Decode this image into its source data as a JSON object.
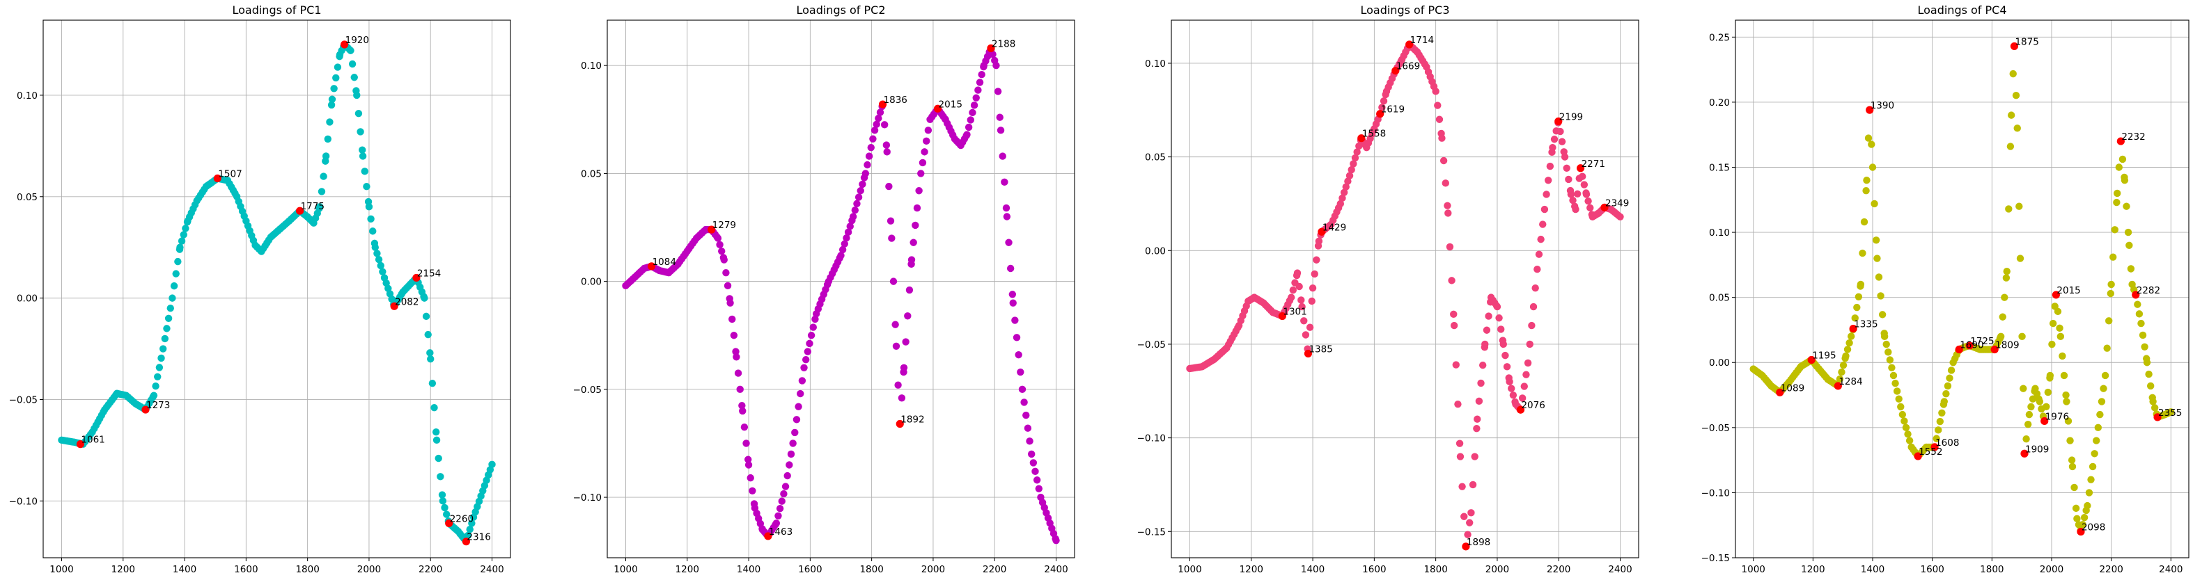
{
  "chart_data": [
    {
      "type": "scatter",
      "title": "Loadings of PC1",
      "xlabel": "",
      "ylabel": "",
      "xlim": [
        940,
        2460
      ],
      "ylim": [
        -0.128,
        0.137
      ],
      "xticks": [
        1000,
        1200,
        1400,
        1600,
        1800,
        2000,
        2200,
        2400
      ],
      "yticks": [
        -0.1,
        -0.05,
        0.0,
        0.05,
        0.1
      ],
      "ytick_labels": [
        "−0.10",
        "−0.05",
        "0.00",
        "0.05",
        "0.10"
      ],
      "grid": true,
      "series_color": "#00bfbf",
      "peak_color": "#ff0000",
      "curve": [
        [
          1000,
          -0.07
        ],
        [
          1040,
          -0.071
        ],
        [
          1070,
          -0.072
        ],
        [
          1100,
          -0.066
        ],
        [
          1140,
          -0.055
        ],
        [
          1180,
          -0.047
        ],
        [
          1210,
          -0.048
        ],
        [
          1240,
          -0.052
        ],
        [
          1273,
          -0.055
        ],
        [
          1300,
          -0.048
        ],
        [
          1330,
          -0.025
        ],
        [
          1360,
          0.0
        ],
        [
          1385,
          0.025
        ],
        [
          1410,
          0.038
        ],
        [
          1440,
          0.048
        ],
        [
          1470,
          0.055
        ],
        [
          1507,
          0.059
        ],
        [
          1540,
          0.058
        ],
        [
          1570,
          0.05
        ],
        [
          1600,
          0.038
        ],
        [
          1630,
          0.026
        ],
        [
          1650,
          0.023
        ],
        [
          1680,
          0.03
        ],
        [
          1710,
          0.034
        ],
        [
          1740,
          0.038
        ],
        [
          1775,
          0.043
        ],
        [
          1800,
          0.04
        ],
        [
          1820,
          0.037
        ],
        [
          1840,
          0.045
        ],
        [
          1860,
          0.07
        ],
        [
          1880,
          0.098
        ],
        [
          1905,
          0.12
        ],
        [
          1920,
          0.125
        ],
        [
          1940,
          0.122
        ],
        [
          1960,
          0.1
        ],
        [
          1980,
          0.07
        ],
        [
          2000,
          0.045
        ],
        [
          2020,
          0.025
        ],
        [
          2050,
          0.01
        ],
        [
          2082,
          -0.004
        ],
        [
          2110,
          0.003
        ],
        [
          2154,
          0.01
        ],
        [
          2180,
          0.0
        ],
        [
          2200,
          -0.03
        ],
        [
          2220,
          -0.07
        ],
        [
          2240,
          -0.1
        ],
        [
          2260,
          -0.111
        ],
        [
          2290,
          -0.115
        ],
        [
          2316,
          -0.12
        ],
        [
          2340,
          -0.108
        ],
        [
          2370,
          -0.095
        ],
        [
          2400,
          -0.082
        ]
      ],
      "peaks": [
        {
          "x": 1061,
          "y": -0.072,
          "label": "1061"
        },
        {
          "x": 1273,
          "y": -0.055,
          "label": "1273"
        },
        {
          "x": 1507,
          "y": 0.059,
          "label": "1507"
        },
        {
          "x": 1775,
          "y": 0.043,
          "label": "1775"
        },
        {
          "x": 1920,
          "y": 0.125,
          "label": "1920"
        },
        {
          "x": 2082,
          "y": -0.004,
          "label": "2082"
        },
        {
          "x": 2154,
          "y": 0.01,
          "label": "2154"
        },
        {
          "x": 2260,
          "y": -0.111,
          "label": "2260"
        },
        {
          "x": 2316,
          "y": -0.12,
          "label": "2316"
        }
      ]
    },
    {
      "type": "scatter",
      "title": "Loadings of PC2",
      "xlabel": "",
      "ylabel": "",
      "xlim": [
        940,
        2460
      ],
      "ylim": [
        -0.128,
        0.121
      ],
      "xticks": [
        1000,
        1200,
        1400,
        1600,
        1800,
        2000,
        2200,
        2400
      ],
      "yticks": [
        -0.1,
        -0.05,
        0.0,
        0.05,
        0.1
      ],
      "ytick_labels": [
        "−0.10",
        "−0.05",
        "0.00",
        "0.05",
        "0.10"
      ],
      "grid": true,
      "series_color": "#bf00bf",
      "peak_color": "#ff0000",
      "curve": [
        [
          1000,
          -0.002
        ],
        [
          1030,
          0.002
        ],
        [
          1060,
          0.006
        ],
        [
          1084,
          0.007
        ],
        [
          1110,
          0.005
        ],
        [
          1140,
          0.004
        ],
        [
          1170,
          0.008
        ],
        [
          1200,
          0.014
        ],
        [
          1230,
          0.02
        ],
        [
          1260,
          0.024
        ],
        [
          1279,
          0.024
        ],
        [
          1300,
          0.02
        ],
        [
          1320,
          0.01
        ],
        [
          1340,
          -0.01
        ],
        [
          1360,
          -0.035
        ],
        [
          1380,
          -0.06
        ],
        [
          1400,
          -0.085
        ],
        [
          1420,
          -0.105
        ],
        [
          1445,
          -0.115
        ],
        [
          1463,
          -0.118
        ],
        [
          1490,
          -0.112
        ],
        [
          1520,
          -0.095
        ],
        [
          1550,
          -0.07
        ],
        [
          1580,
          -0.04
        ],
        [
          1620,
          -0.015
        ],
        [
          1660,
          0.0
        ],
        [
          1700,
          0.012
        ],
        [
          1740,
          0.03
        ],
        [
          1780,
          0.05
        ],
        [
          1810,
          0.07
        ],
        [
          1836,
          0.082
        ],
        [
          1850,
          0.06
        ],
        [
          1865,
          0.02
        ],
        [
          1880,
          -0.03
        ],
        [
          1892,
          -0.066
        ],
        [
          1905,
          -0.04
        ],
        [
          1930,
          0.01
        ],
        [
          1960,
          0.05
        ],
        [
          1990,
          0.075
        ],
        [
          2015,
          0.08
        ],
        [
          2040,
          0.075
        ],
        [
          2070,
          0.066
        ],
        [
          2090,
          0.063
        ],
        [
          2110,
          0.068
        ],
        [
          2140,
          0.085
        ],
        [
          2165,
          0.1
        ],
        [
          2188,
          0.108
        ],
        [
          2205,
          0.1
        ],
        [
          2220,
          0.07
        ],
        [
          2240,
          0.03
        ],
        [
          2260,
          -0.01
        ],
        [
          2290,
          -0.05
        ],
        [
          2320,
          -0.08
        ],
        [
          2350,
          -0.1
        ],
        [
          2400,
          -0.12
        ]
      ],
      "peaks": [
        {
          "x": 1084,
          "y": 0.007,
          "label": "1084"
        },
        {
          "x": 1279,
          "y": 0.024,
          "label": "1279"
        },
        {
          "x": 1463,
          "y": -0.118,
          "label": "1463"
        },
        {
          "x": 1836,
          "y": 0.082,
          "label": "1836"
        },
        {
          "x": 1892,
          "y": -0.066,
          "label": "1892"
        },
        {
          "x": 2015,
          "y": 0.08,
          "label": "2015"
        },
        {
          "x": 2188,
          "y": 0.108,
          "label": "2188"
        }
      ]
    },
    {
      "type": "scatter",
      "title": "Loadings of PC3",
      "xlabel": "",
      "ylabel": "",
      "xlim": [
        940,
        2460
      ],
      "ylim": [
        -0.164,
        0.123
      ],
      "xticks": [
        1000,
        1200,
        1400,
        1600,
        1800,
        2000,
        2200,
        2400
      ],
      "yticks": [
        -0.15,
        -0.1,
        -0.05,
        0.0,
        0.05,
        0.1
      ],
      "ytick_labels": [
        "−0.15",
        "−0.10",
        "−0.05",
        "0.00",
        "0.05",
        "0.10"
      ],
      "grid": true,
      "series_color": "#f0407a",
      "peak_color": "#ff0000",
      "curve": [
        [
          1000,
          -0.063
        ],
        [
          1040,
          -0.062
        ],
        [
          1080,
          -0.058
        ],
        [
          1120,
          -0.052
        ],
        [
          1160,
          -0.04
        ],
        [
          1190,
          -0.027
        ],
        [
          1210,
          -0.025
        ],
        [
          1240,
          -0.028
        ],
        [
          1270,
          -0.033
        ],
        [
          1301,
          -0.035
        ],
        [
          1330,
          -0.025
        ],
        [
          1350,
          -0.012
        ],
        [
          1365,
          -0.03
        ],
        [
          1385,
          -0.055
        ],
        [
          1400,
          -0.02
        ],
        [
          1420,
          0.005
        ],
        [
          1429,
          0.01
        ],
        [
          1460,
          0.014
        ],
        [
          1490,
          0.025
        ],
        [
          1520,
          0.04
        ],
        [
          1558,
          0.06
        ],
        [
          1575,
          0.055
        ],
        [
          1600,
          0.065
        ],
        [
          1619,
          0.073
        ],
        [
          1640,
          0.085
        ],
        [
          1669,
          0.096
        ],
        [
          1690,
          0.102
        ],
        [
          1714,
          0.11
        ],
        [
          1740,
          0.106
        ],
        [
          1770,
          0.098
        ],
        [
          1800,
          0.085
        ],
        [
          1820,
          0.06
        ],
        [
          1840,
          0.02
        ],
        [
          1860,
          -0.04
        ],
        [
          1880,
          -0.11
        ],
        [
          1898,
          -0.158
        ],
        [
          1915,
          -0.14
        ],
        [
          1935,
          -0.09
        ],
        [
          1960,
          -0.05
        ],
        [
          1980,
          -0.025
        ],
        [
          2000,
          -0.03
        ],
        [
          2020,
          -0.05
        ],
        [
          2040,
          -0.07
        ],
        [
          2060,
          -0.082
        ],
        [
          2076,
          -0.085
        ],
        [
          2100,
          -0.06
        ],
        [
          2130,
          -0.01
        ],
        [
          2160,
          0.03
        ],
        [
          2180,
          0.055
        ],
        [
          2199,
          0.069
        ],
        [
          2220,
          0.05
        ],
        [
          2240,
          0.03
        ],
        [
          2255,
          0.022
        ],
        [
          2271,
          0.044
        ],
        [
          2290,
          0.03
        ],
        [
          2310,
          0.018
        ],
        [
          2330,
          0.02
        ],
        [
          2349,
          0.023
        ],
        [
          2370,
          0.022
        ],
        [
          2400,
          0.018
        ]
      ],
      "peaks": [
        {
          "x": 1301,
          "y": -0.035,
          "label": "1301"
        },
        {
          "x": 1385,
          "y": -0.055,
          "label": "1385"
        },
        {
          "x": 1429,
          "y": 0.01,
          "label": "1429"
        },
        {
          "x": 1558,
          "y": 0.06,
          "label": "1558"
        },
        {
          "x": 1619,
          "y": 0.073,
          "label": "1619"
        },
        {
          "x": 1669,
          "y": 0.096,
          "label": "1669"
        },
        {
          "x": 1714,
          "y": 0.11,
          "label": "1714"
        },
        {
          "x": 1898,
          "y": -0.158,
          "label": "1898"
        },
        {
          "x": 2076,
          "y": -0.085,
          "label": "2076"
        },
        {
          "x": 2199,
          "y": 0.069,
          "label": "2199"
        },
        {
          "x": 2271,
          "y": 0.044,
          "label": "2271"
        },
        {
          "x": 2349,
          "y": 0.023,
          "label": "2349"
        }
      ]
    },
    {
      "type": "scatter",
      "title": "Loadings of PC4",
      "xlabel": "",
      "ylabel": "",
      "xlim": [
        940,
        2460
      ],
      "ylim": [
        -0.15,
        0.263
      ],
      "xticks": [
        1000,
        1200,
        1400,
        1600,
        1800,
        2000,
        2200,
        2400
      ],
      "yticks": [
        -0.15,
        -0.1,
        -0.05,
        0.0,
        0.05,
        0.1,
        0.15,
        0.2,
        0.25
      ],
      "ytick_labels": [
        "−0.15",
        "−0.10",
        "−0.05",
        "0.00",
        "0.05",
        "0.10",
        "0.15",
        "0.20",
        "0.25"
      ],
      "grid": true,
      "series_color": "#bfbf00",
      "peak_color": "#ff0000",
      "curve": [
        [
          1000,
          -0.005
        ],
        [
          1030,
          -0.01
        ],
        [
          1060,
          -0.018
        ],
        [
          1089,
          -0.023
        ],
        [
          1120,
          -0.015
        ],
        [
          1160,
          -0.003
        ],
        [
          1195,
          0.002
        ],
        [
          1220,
          -0.005
        ],
        [
          1250,
          -0.013
        ],
        [
          1284,
          -0.018
        ],
        [
          1310,
          0.005
        ],
        [
          1335,
          0.026
        ],
        [
          1360,
          0.06
        ],
        [
          1380,
          0.14
        ],
        [
          1390,
          0.194
        ],
        [
          1400,
          0.15
        ],
        [
          1415,
          0.08
        ],
        [
          1440,
          0.02
        ],
        [
          1470,
          -0.01
        ],
        [
          1500,
          -0.04
        ],
        [
          1530,
          -0.065
        ],
        [
          1552,
          -0.072
        ],
        [
          1580,
          -0.065
        ],
        [
          1608,
          -0.065
        ],
        [
          1640,
          -0.03
        ],
        [
          1670,
          0.0
        ],
        [
          1690,
          0.01
        ],
        [
          1710,
          0.012
        ],
        [
          1725,
          0.013
        ],
        [
          1760,
          0.01
        ],
        [
          1790,
          0.01
        ],
        [
          1809,
          0.01
        ],
        [
          1830,
          0.02
        ],
        [
          1850,
          0.07
        ],
        [
          1865,
          0.19
        ],
        [
          1875,
          0.243
        ],
        [
          1885,
          0.18
        ],
        [
          1895,
          0.08
        ],
        [
          1905,
          -0.02
        ],
        [
          1909,
          -0.07
        ],
        [
          1925,
          -0.04
        ],
        [
          1945,
          -0.02
        ],
        [
          1960,
          -0.03
        ],
        [
          1976,
          -0.045
        ],
        [
          1995,
          -0.01
        ],
        [
          2005,
          0.03
        ],
        [
          2015,
          0.052
        ],
        [
          2030,
          0.02
        ],
        [
          2050,
          -0.03
        ],
        [
          2070,
          -0.08
        ],
        [
          2085,
          -0.12
        ],
        [
          2098,
          -0.13
        ],
        [
          2120,
          -0.11
        ],
        [
          2150,
          -0.06
        ],
        [
          2180,
          -0.01
        ],
        [
          2200,
          0.06
        ],
        [
          2220,
          0.13
        ],
        [
          2232,
          0.17
        ],
        [
          2245,
          0.14
        ],
        [
          2260,
          0.09
        ],
        [
          2270,
          0.06
        ],
        [
          2282,
          0.052
        ],
        [
          2300,
          0.03
        ],
        [
          2320,
          0.0
        ],
        [
          2340,
          -0.03
        ],
        [
          2355,
          -0.042
        ],
        [
          2380,
          -0.04
        ],
        [
          2400,
          -0.038
        ]
      ],
      "peaks": [
        {
          "x": 1089,
          "y": -0.023,
          "label": "1089"
        },
        {
          "x": 1195,
          "y": 0.002,
          "label": "1195"
        },
        {
          "x": 1284,
          "y": -0.018,
          "label": "1284"
        },
        {
          "x": 1335,
          "y": 0.026,
          "label": "1335"
        },
        {
          "x": 1390,
          "y": 0.194,
          "label": "1390"
        },
        {
          "x": 1552,
          "y": -0.072,
          "label": "1552"
        },
        {
          "x": 1608,
          "y": -0.065,
          "label": "1608"
        },
        {
          "x": 1690,
          "y": 0.01,
          "label": "1690"
        },
        {
          "x": 1725,
          "y": 0.013,
          "label": "1725"
        },
        {
          "x": 1809,
          "y": 0.01,
          "label": "1809"
        },
        {
          "x": 1875,
          "y": 0.243,
          "label": "1875"
        },
        {
          "x": 1909,
          "y": -0.07,
          "label": "1909"
        },
        {
          "x": 1976,
          "y": -0.045,
          "label": "1976"
        },
        {
          "x": 2015,
          "y": 0.052,
          "label": "2015"
        },
        {
          "x": 2098,
          "y": -0.13,
          "label": "2098"
        },
        {
          "x": 2232,
          "y": 0.17,
          "label": "2232"
        },
        {
          "x": 2282,
          "y": 0.052,
          "label": "2282"
        },
        {
          "x": 2355,
          "y": -0.042,
          "label": "2355"
        }
      ]
    }
  ]
}
